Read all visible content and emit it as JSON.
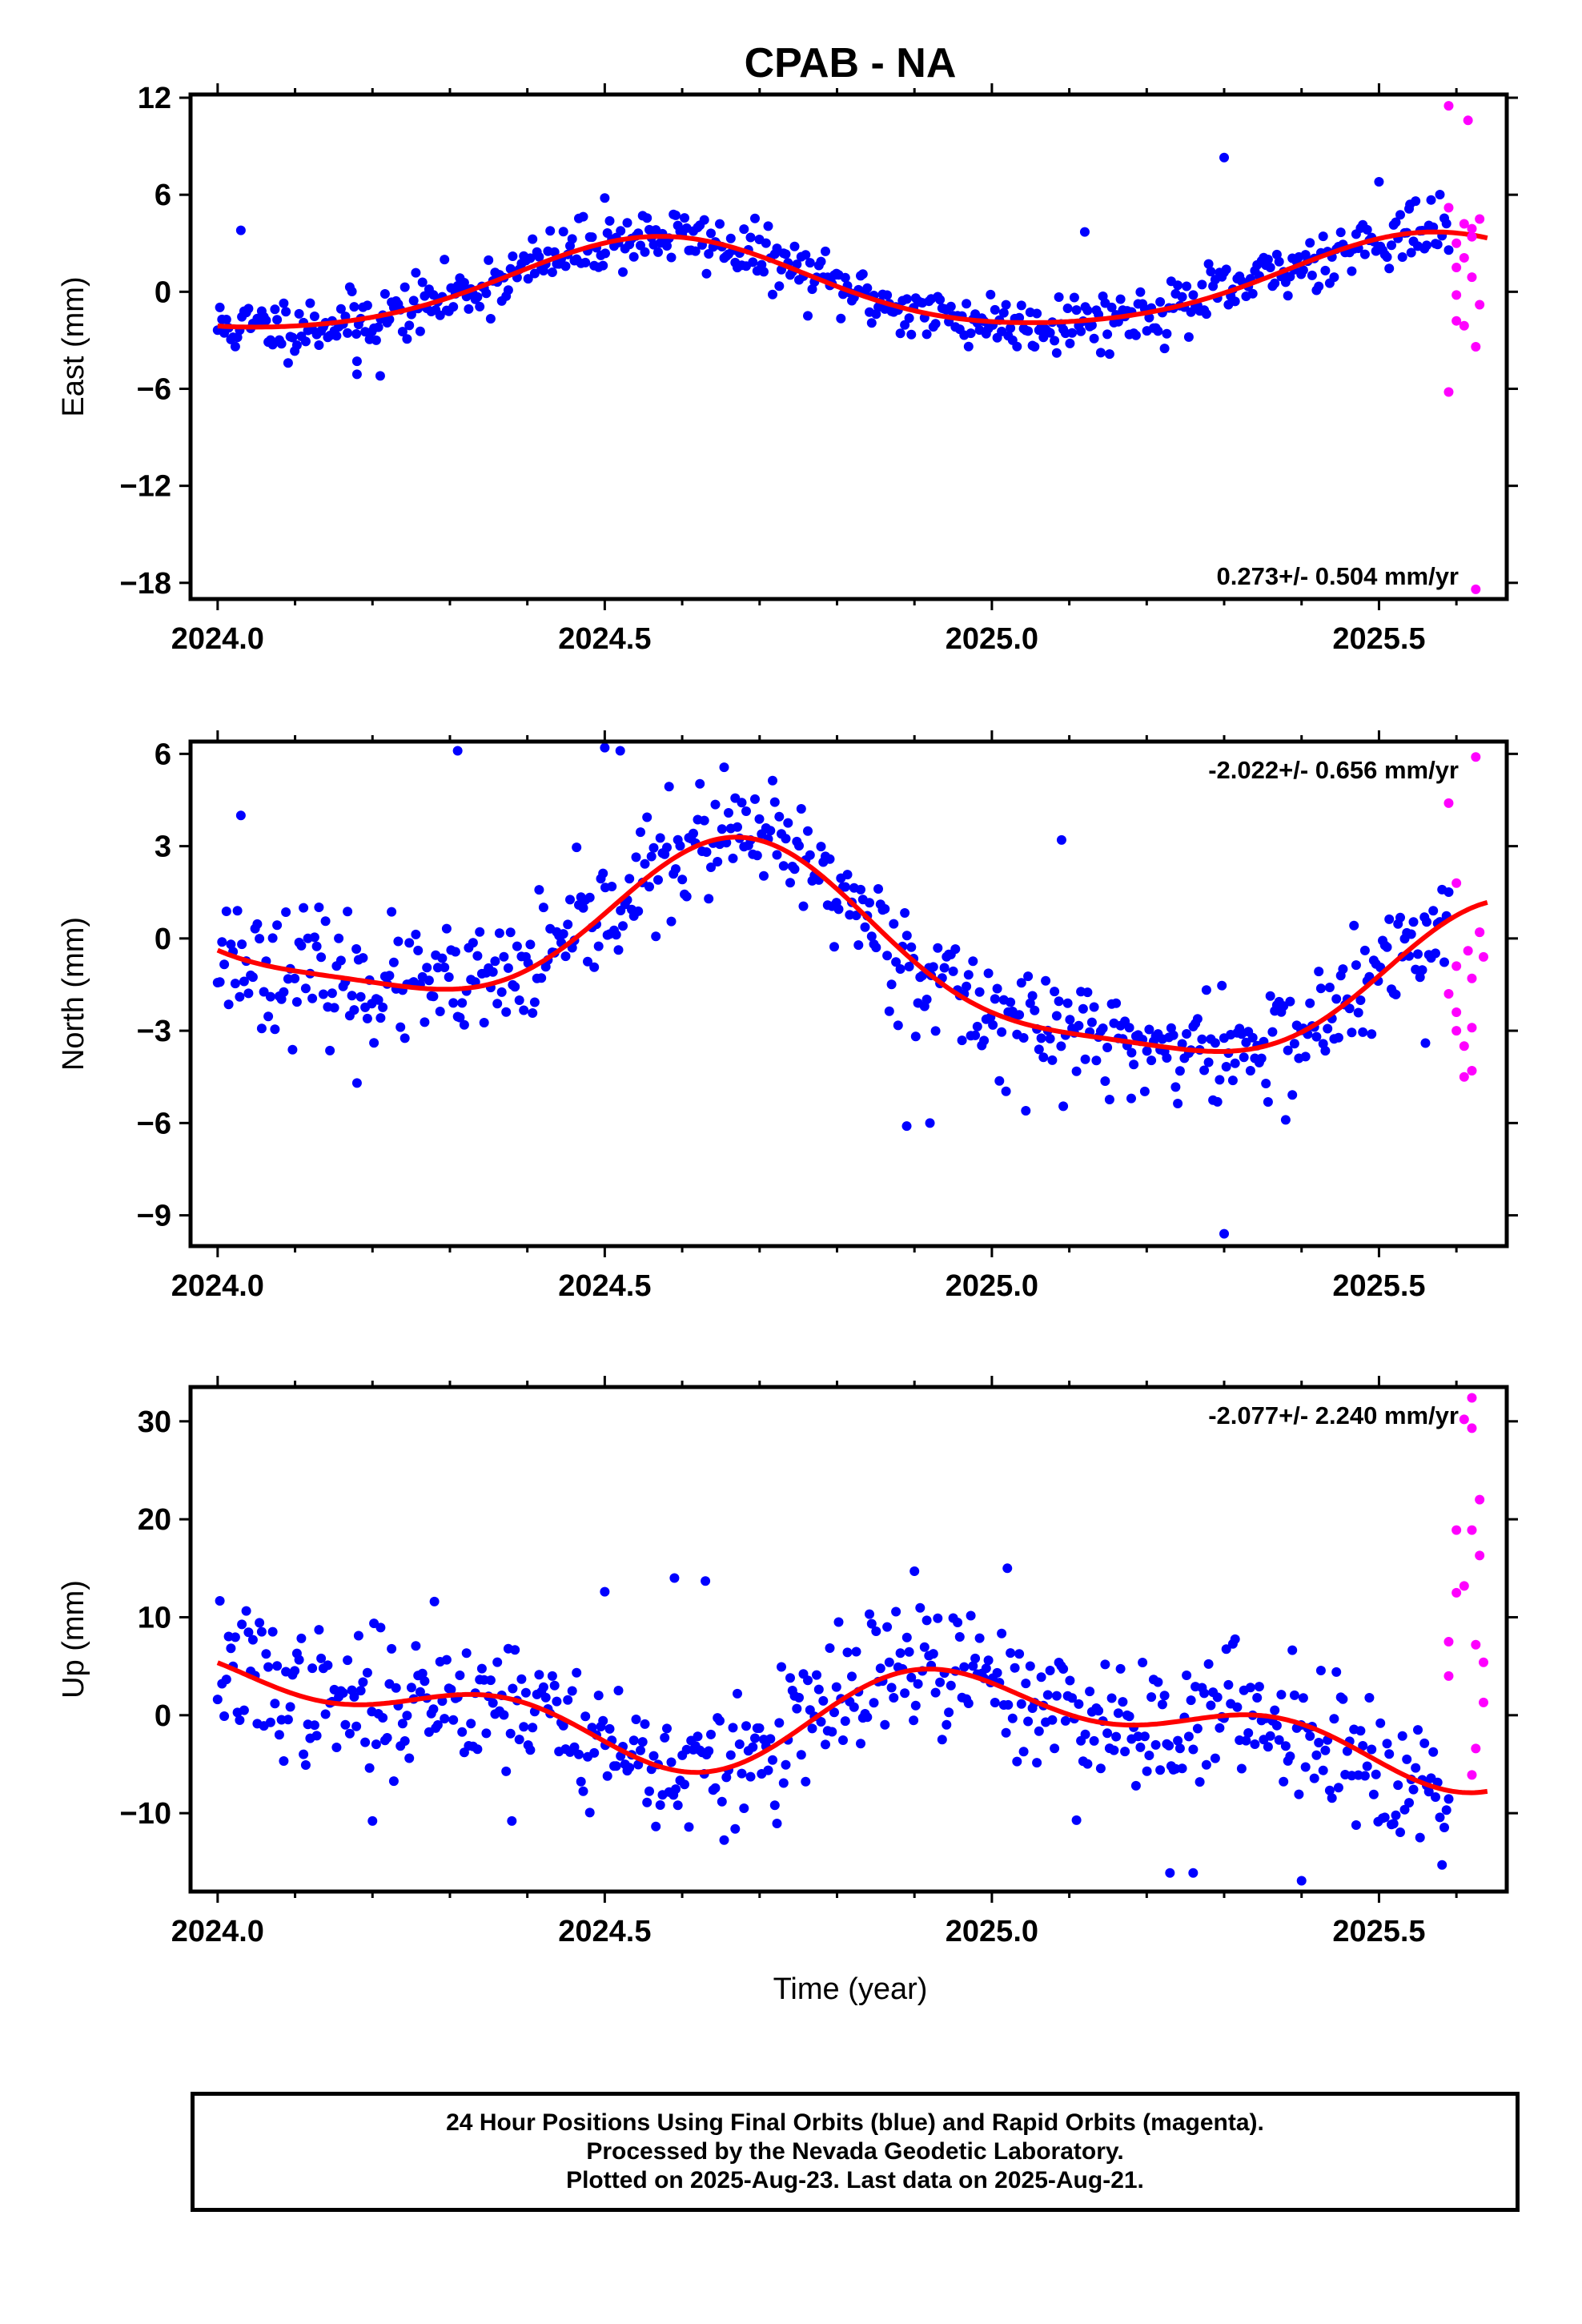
{
  "title": "CPAB - NA",
  "xlabel": "Time (year)",
  "footer": {
    "line1": "24 Hour Positions Using Final Orbits (blue) and Rapid Orbits (magenta).",
    "line2": "Processed by the Nevada Geodetic Laboratory.",
    "line3": "Plotted on 2025-Aug-23. Last data on 2025-Aug-21."
  },
  "colors": {
    "final": "#0000ff",
    "rapid": "#ff00ff",
    "fit": "#ff0000",
    "axis": "#000000"
  },
  "chart_data": [
    {
      "type": "scatter",
      "ylabel": "East (mm)",
      "xlim": [
        2023.965,
        2025.665
      ],
      "ylim": [
        -19,
        12.2
      ],
      "xticks": [
        "2024.0",
        "2024.5",
        "2025.0",
        "2025.5"
      ],
      "yticks": [
        12,
        6,
        0,
        -6,
        -12,
        -18
      ],
      "annotation": "0.273+/- 0.504 mm/yr",
      "annotation_position": "bottom-right",
      "fit": {
        "offset": 0.4,
        "rate": 0.273,
        "annual_sin": -1.1,
        "annual_cos": -2.5,
        "semi_sin": 0.3,
        "semi_cos": 0.2,
        "t0": 2024.8
      },
      "final": {
        "x_start": 2024.0,
        "x_end": 2025.59,
        "n": 560,
        "noise": 0.9,
        "seed": 11,
        "outliers": [
          [
            2024.03,
            3.8
          ],
          [
            2024.18,
            -4.3
          ],
          [
            2024.18,
            -5.1
          ],
          [
            2024.21,
            -5.2
          ],
          [
            2025.3,
            8.3
          ],
          [
            2025.5,
            6.8
          ],
          [
            2025.54,
            5.4
          ],
          [
            2025.12,
            3.7
          ],
          [
            2024.5,
            5.8
          ]
        ]
      },
      "rapid": [
        [
          2025.59,
          11.5
        ],
        [
          2025.59,
          5.2
        ],
        [
          2025.6,
          3.0
        ],
        [
          2025.6,
          1.5
        ],
        [
          2025.6,
          -0.2
        ],
        [
          2025.6,
          -1.8
        ],
        [
          2025.59,
          -6.2
        ],
        [
          2025.61,
          4.2
        ],
        [
          2025.61,
          2.1
        ],
        [
          2025.61,
          -2.1
        ],
        [
          2025.615,
          10.6
        ],
        [
          2025.62,
          3.4
        ],
        [
          2025.62,
          0.9
        ],
        [
          2025.625,
          -3.4
        ],
        [
          2025.63,
          4.5
        ],
        [
          2025.63,
          -0.8
        ],
        [
          2025.625,
          -18.4
        ],
        [
          2025.62,
          3.9
        ]
      ]
    },
    {
      "type": "scatter",
      "ylabel": "North (mm)",
      "xlim": [
        2023.965,
        2025.665
      ],
      "ylim": [
        -10,
        6.4
      ],
      "xticks": [
        "2024.0",
        "2024.5",
        "2025.0",
        "2025.5"
      ],
      "yticks": [
        6,
        3,
        0,
        -3,
        -6,
        -9
      ],
      "annotation": "-2.022+/- 0.656 mm/yr",
      "annotation_position": "top-right",
      "fit": {
        "offset": -0.5,
        "rate": -2.022,
        "annual_sin": -2.6,
        "annual_cos": -1.1,
        "semi_sin": 0.6,
        "semi_cos": -0.4,
        "t0": 2024.8
      },
      "final": {
        "x_start": 2024.0,
        "x_end": 2025.59,
        "n": 560,
        "noise": 0.95,
        "seed": 23,
        "outliers": [
          [
            2024.03,
            4.0
          ],
          [
            2024.18,
            -4.7
          ],
          [
            2024.31,
            6.1
          ],
          [
            2024.5,
            6.2
          ],
          [
            2024.52,
            6.1
          ],
          [
            2025.09,
            3.2
          ],
          [
            2025.3,
            -9.6
          ],
          [
            2024.92,
            -6.0
          ],
          [
            2024.89,
            -6.1
          ],
          [
            2025.18,
            -5.2
          ],
          [
            2025.56,
            -3.4
          ]
        ]
      },
      "rapid": [
        [
          2025.59,
          4.4
        ],
        [
          2025.6,
          1.8
        ],
        [
          2025.59,
          -1.8
        ],
        [
          2025.6,
          -2.4
        ],
        [
          2025.6,
          -3.0
        ],
        [
          2025.61,
          -3.5
        ],
        [
          2025.61,
          -4.5
        ],
        [
          2025.615,
          -0.4
        ],
        [
          2025.62,
          -1.3
        ],
        [
          2025.62,
          -2.9
        ],
        [
          2025.62,
          -4.3
        ],
        [
          2025.63,
          0.2
        ],
        [
          2025.635,
          -0.6
        ],
        [
          2025.625,
          5.9
        ],
        [
          2025.63,
          0.2
        ],
        [
          2025.6,
          -0.9
        ]
      ]
    },
    {
      "type": "scatter",
      "ylabel": "Up (mm)",
      "xlim": [
        2023.965,
        2025.665
      ],
      "ylim": [
        -18,
        33.5
      ],
      "xticks": [
        "2024.0",
        "2024.5",
        "2025.0",
        "2025.5"
      ],
      "yticks": [
        30,
        20,
        10,
        0,
        -10
      ],
      "annotation": "-2.077+/- 2.240 mm/yr",
      "annotation_position": "top-right",
      "fit": {
        "offset": -0.2,
        "rate": -2.077,
        "annual_sin": 1.0,
        "annual_cos": 3.5,
        "semi_sin": -2.8,
        "semi_cos": 0.4,
        "t0": 2024.8
      },
      "final": {
        "x_start": 2024.0,
        "x_end": 2025.59,
        "n": 560,
        "noise": 3.4,
        "seed": 37,
        "outliers": [
          [
            2024.28,
            11.6
          ],
          [
            2024.5,
            12.6
          ],
          [
            2024.59,
            14.0
          ],
          [
            2024.63,
            13.7
          ],
          [
            2025.02,
            15.0
          ],
          [
            2024.9,
            14.7
          ],
          [
            2025.23,
            -16.1
          ],
          [
            2025.26,
            -16.1
          ],
          [
            2025.4,
            -16.9
          ],
          [
            2024.38,
            -10.8
          ],
          [
            2024.2,
            -10.8
          ]
        ]
      },
      "rapid": [
        [
          2025.59,
          7.5
        ],
        [
          2025.59,
          4.0
        ],
        [
          2025.6,
          12.5
        ],
        [
          2025.6,
          18.9
        ],
        [
          2025.61,
          13.2
        ],
        [
          2025.61,
          30.2
        ],
        [
          2025.62,
          32.4
        ],
        [
          2025.62,
          29.3
        ],
        [
          2025.62,
          18.9
        ],
        [
          2025.625,
          7.2
        ],
        [
          2025.625,
          -3.4
        ],
        [
          2025.62,
          -6.1
        ],
        [
          2025.63,
          22.0
        ],
        [
          2025.63,
          16.3
        ],
        [
          2025.635,
          5.4
        ],
        [
          2025.635,
          1.3
        ]
      ]
    }
  ]
}
